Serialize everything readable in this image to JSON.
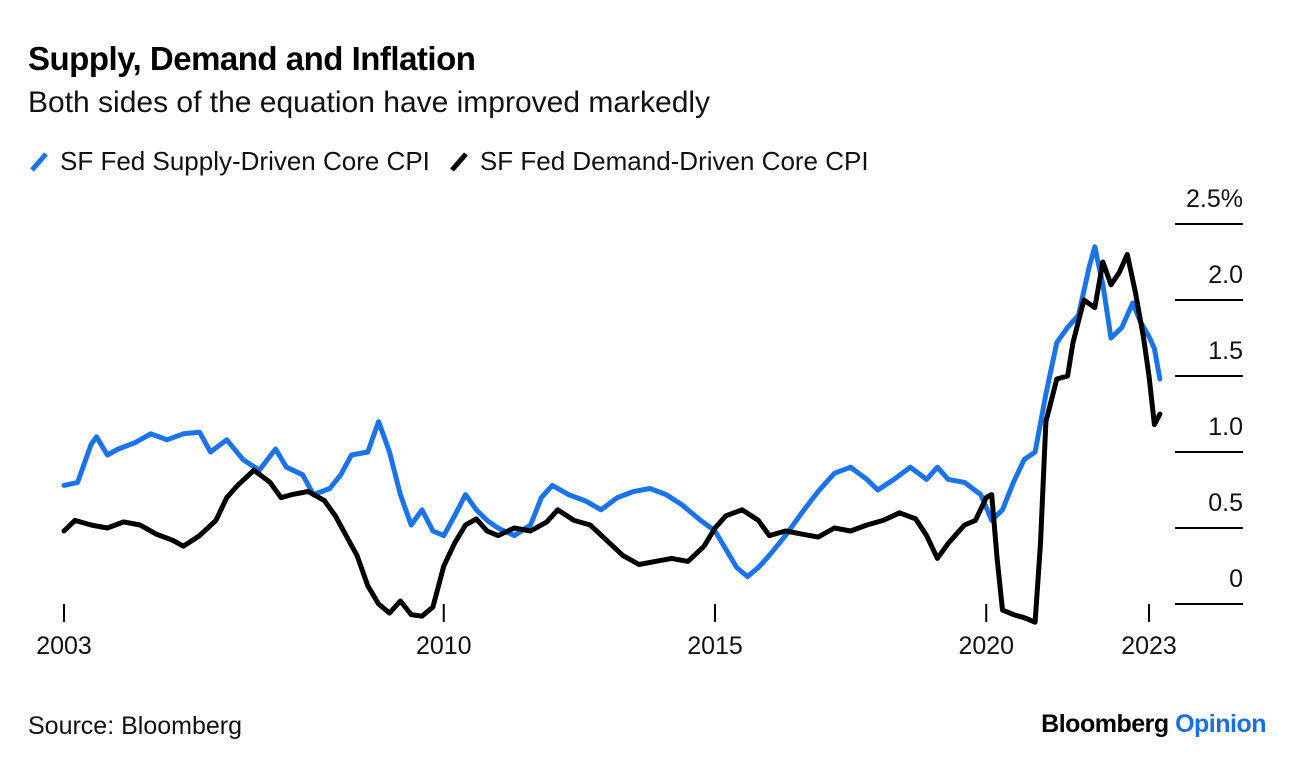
{
  "header": {
    "title": "Supply, Demand and Inflation",
    "subtitle": "Both sides of the equation have improved markedly"
  },
  "footer": {
    "source": "Source: Bloomberg",
    "brand_primary": "Bloomberg",
    "brand_secondary": "Opinion"
  },
  "colors": {
    "supply": "#1a73e8",
    "demand": "#000000",
    "axis": "#000000"
  },
  "chart_data": {
    "type": "line",
    "title": "Supply, Demand and Inflation",
    "subtitle": "Both sides of the equation have improved markedly",
    "xlabel": "",
    "ylabel": "",
    "xlim": [
      2003,
      2023
    ],
    "ylim": [
      -0.1,
      2.5
    ],
    "x_ticks": [
      {
        "value": 2003,
        "label": "2003"
      },
      {
        "value": 2010,
        "label": "2010"
      },
      {
        "value": 2015,
        "label": "2015"
      },
      {
        "value": 2020,
        "label": "2020"
      },
      {
        "value": 2023,
        "label": "2023"
      }
    ],
    "y_ticks": [
      {
        "value": 0,
        "label": "0"
      },
      {
        "value": 0.5,
        "label": "0.5"
      },
      {
        "value": 1.0,
        "label": "1.0"
      },
      {
        "value": 1.5,
        "label": "1.5"
      },
      {
        "value": 2.0,
        "label": "2.0"
      },
      {
        "value": 2.5,
        "label": "2.5%"
      }
    ],
    "grid": false,
    "legend_position": "top-left",
    "series": [
      {
        "name": "SF Fed Supply-Driven Core CPI",
        "color": "#1a73e8",
        "points": [
          [
            2003.0,
            0.78
          ],
          [
            2003.25,
            0.8
          ],
          [
            2003.5,
            1.05
          ],
          [
            2003.6,
            1.1
          ],
          [
            2003.8,
            0.98
          ],
          [
            2004.0,
            1.02
          ],
          [
            2004.3,
            1.06
          ],
          [
            2004.6,
            1.12
          ],
          [
            2004.9,
            1.08
          ],
          [
            2005.2,
            1.12
          ],
          [
            2005.5,
            1.13
          ],
          [
            2005.7,
            1.0
          ],
          [
            2006.0,
            1.08
          ],
          [
            2006.3,
            0.95
          ],
          [
            2006.6,
            0.88
          ],
          [
            2006.9,
            1.02
          ],
          [
            2007.1,
            0.9
          ],
          [
            2007.4,
            0.85
          ],
          [
            2007.6,
            0.72
          ],
          [
            2007.9,
            0.76
          ],
          [
            2008.1,
            0.85
          ],
          [
            2008.3,
            0.98
          ],
          [
            2008.6,
            1.0
          ],
          [
            2008.8,
            1.2
          ],
          [
            2009.0,
            1.0
          ],
          [
            2009.2,
            0.72
          ],
          [
            2009.4,
            0.52
          ],
          [
            2009.6,
            0.62
          ],
          [
            2009.8,
            0.48
          ],
          [
            2010.0,
            0.45
          ],
          [
            2010.2,
            0.58
          ],
          [
            2010.4,
            0.72
          ],
          [
            2010.6,
            0.62
          ],
          [
            2010.8,
            0.55
          ],
          [
            2011.0,
            0.5
          ],
          [
            2011.3,
            0.45
          ],
          [
            2011.6,
            0.52
          ],
          [
            2011.8,
            0.7
          ],
          [
            2012.0,
            0.78
          ],
          [
            2012.3,
            0.72
          ],
          [
            2012.6,
            0.68
          ],
          [
            2012.9,
            0.62
          ],
          [
            2013.2,
            0.7
          ],
          [
            2013.5,
            0.74
          ],
          [
            2013.8,
            0.76
          ],
          [
            2014.1,
            0.72
          ],
          [
            2014.4,
            0.65
          ],
          [
            2014.7,
            0.56
          ],
          [
            2015.0,
            0.48
          ],
          [
            2015.2,
            0.36
          ],
          [
            2015.4,
            0.24
          ],
          [
            2015.6,
            0.18
          ],
          [
            2015.8,
            0.24
          ],
          [
            2016.0,
            0.32
          ],
          [
            2016.3,
            0.45
          ],
          [
            2016.6,
            0.6
          ],
          [
            2016.9,
            0.74
          ],
          [
            2017.2,
            0.86
          ],
          [
            2017.5,
            0.9
          ],
          [
            2017.8,
            0.82
          ],
          [
            2018.0,
            0.75
          ],
          [
            2018.3,
            0.82
          ],
          [
            2018.6,
            0.9
          ],
          [
            2018.9,
            0.82
          ],
          [
            2019.1,
            0.9
          ],
          [
            2019.3,
            0.82
          ],
          [
            2019.6,
            0.8
          ],
          [
            2019.9,
            0.72
          ],
          [
            2020.1,
            0.55
          ],
          [
            2020.3,
            0.62
          ],
          [
            2020.5,
            0.8
          ],
          [
            2020.7,
            0.95
          ],
          [
            2020.9,
            1.0
          ],
          [
            2021.1,
            1.38
          ],
          [
            2021.3,
            1.72
          ],
          [
            2021.5,
            1.82
          ],
          [
            2021.7,
            1.9
          ],
          [
            2021.9,
            2.22
          ],
          [
            2022.0,
            2.35
          ],
          [
            2022.15,
            2.1
          ],
          [
            2022.3,
            1.75
          ],
          [
            2022.5,
            1.82
          ],
          [
            2022.7,
            1.98
          ],
          [
            2022.85,
            1.85
          ],
          [
            2023.0,
            1.76
          ],
          [
            2023.1,
            1.68
          ],
          [
            2023.2,
            1.48
          ]
        ]
      },
      {
        "name": "SF Fed Demand-Driven Core CPI",
        "color": "#000000",
        "points": [
          [
            2003.0,
            0.48
          ],
          [
            2003.2,
            0.55
          ],
          [
            2003.5,
            0.52
          ],
          [
            2003.8,
            0.5
          ],
          [
            2004.1,
            0.54
          ],
          [
            2004.4,
            0.52
          ],
          [
            2004.7,
            0.46
          ],
          [
            2005.0,
            0.42
          ],
          [
            2005.2,
            0.38
          ],
          [
            2005.5,
            0.45
          ],
          [
            2005.8,
            0.55
          ],
          [
            2006.0,
            0.7
          ],
          [
            2006.2,
            0.78
          ],
          [
            2006.5,
            0.88
          ],
          [
            2006.8,
            0.8
          ],
          [
            2007.0,
            0.7
          ],
          [
            2007.2,
            0.72
          ],
          [
            2007.5,
            0.74
          ],
          [
            2007.8,
            0.68
          ],
          [
            2008.0,
            0.58
          ],
          [
            2008.2,
            0.45
          ],
          [
            2008.4,
            0.32
          ],
          [
            2008.6,
            0.12
          ],
          [
            2008.8,
            0.0
          ],
          [
            2009.0,
            -0.06
          ],
          [
            2009.2,
            0.02
          ],
          [
            2009.4,
            -0.07
          ],
          [
            2009.6,
            -0.08
          ],
          [
            2009.8,
            -0.02
          ],
          [
            2010.0,
            0.25
          ],
          [
            2010.2,
            0.4
          ],
          [
            2010.4,
            0.52
          ],
          [
            2010.6,
            0.56
          ],
          [
            2010.8,
            0.48
          ],
          [
            2011.0,
            0.45
          ],
          [
            2011.3,
            0.5
          ],
          [
            2011.6,
            0.48
          ],
          [
            2011.9,
            0.54
          ],
          [
            2012.1,
            0.62
          ],
          [
            2012.4,
            0.55
          ],
          [
            2012.7,
            0.52
          ],
          [
            2013.0,
            0.42
          ],
          [
            2013.3,
            0.32
          ],
          [
            2013.6,
            0.26
          ],
          [
            2013.9,
            0.28
          ],
          [
            2014.2,
            0.3
          ],
          [
            2014.5,
            0.28
          ],
          [
            2014.8,
            0.38
          ],
          [
            2015.0,
            0.5
          ],
          [
            2015.2,
            0.58
          ],
          [
            2015.5,
            0.62
          ],
          [
            2015.8,
            0.55
          ],
          [
            2016.0,
            0.45
          ],
          [
            2016.3,
            0.48
          ],
          [
            2016.6,
            0.46
          ],
          [
            2016.9,
            0.44
          ],
          [
            2017.2,
            0.5
          ],
          [
            2017.5,
            0.48
          ],
          [
            2017.8,
            0.52
          ],
          [
            2018.1,
            0.55
          ],
          [
            2018.4,
            0.6
          ],
          [
            2018.7,
            0.56
          ],
          [
            2018.9,
            0.45
          ],
          [
            2019.1,
            0.3
          ],
          [
            2019.3,
            0.4
          ],
          [
            2019.6,
            0.52
          ],
          [
            2019.8,
            0.55
          ],
          [
            2020.0,
            0.7
          ],
          [
            2020.1,
            0.72
          ],
          [
            2020.2,
            0.3
          ],
          [
            2020.3,
            -0.04
          ],
          [
            2020.5,
            -0.07
          ],
          [
            2020.7,
            -0.09
          ],
          [
            2020.9,
            -0.12
          ],
          [
            2021.0,
            0.4
          ],
          [
            2021.1,
            1.2
          ],
          [
            2021.3,
            1.48
          ],
          [
            2021.5,
            1.5
          ],
          [
            2021.6,
            1.72
          ],
          [
            2021.8,
            2.0
          ],
          [
            2022.0,
            1.95
          ],
          [
            2022.15,
            2.25
          ],
          [
            2022.3,
            2.1
          ],
          [
            2022.45,
            2.18
          ],
          [
            2022.6,
            2.3
          ],
          [
            2022.75,
            2.05
          ],
          [
            2022.9,
            1.75
          ],
          [
            2023.0,
            1.5
          ],
          [
            2023.1,
            1.18
          ],
          [
            2023.2,
            1.25
          ]
        ]
      }
    ]
  }
}
